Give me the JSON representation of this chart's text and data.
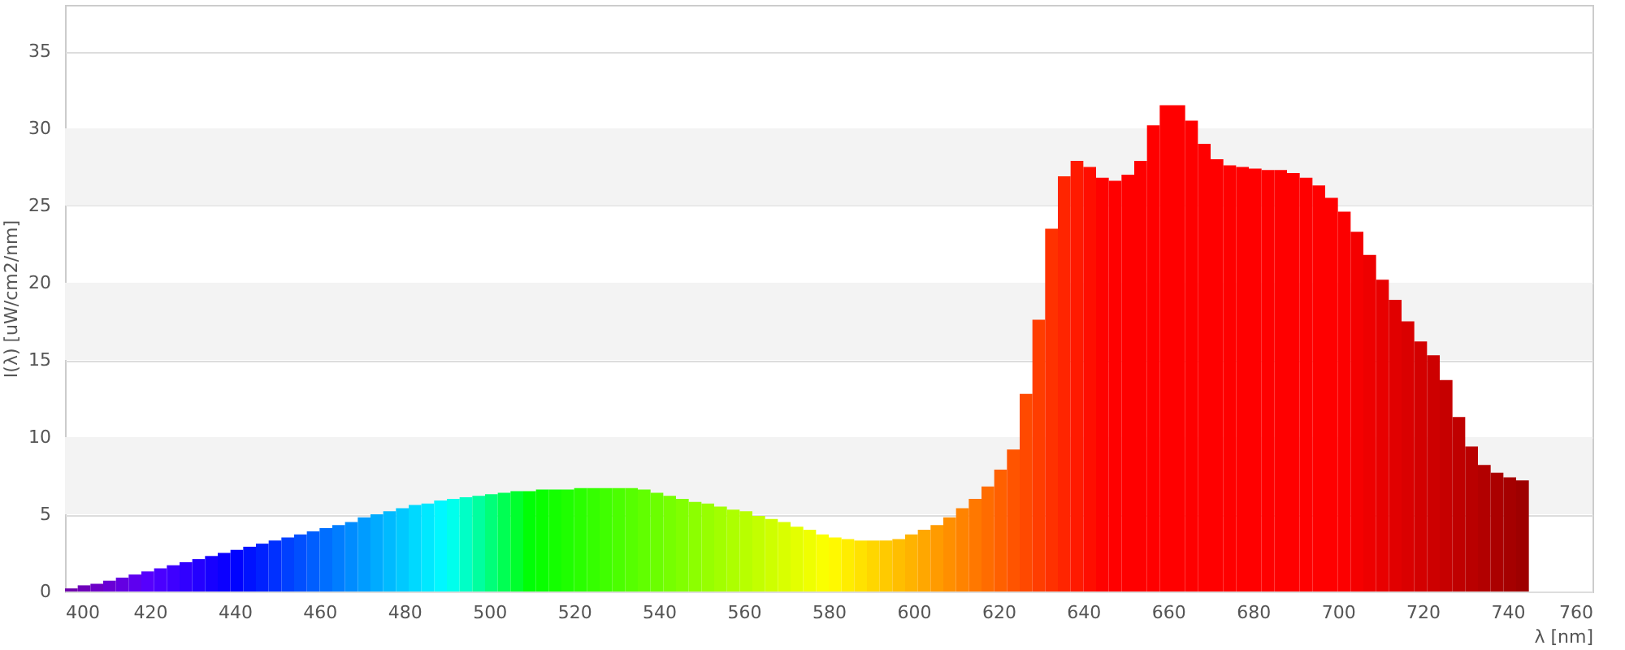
{
  "chart_data": {
    "type": "histogram",
    "xlabel": "λ [nm]",
    "ylabel": "I(λ) [uW/cm2/nm]",
    "bins": [
      400,
      403,
      406,
      409,
      412,
      415,
      418,
      421,
      424,
      427,
      430,
      433,
      436,
      439,
      442,
      445,
      448,
      451,
      454,
      457,
      460,
      463,
      466,
      469,
      472,
      475,
      478,
      481,
      484,
      487,
      490,
      493,
      496,
      499,
      502,
      505,
      508,
      511,
      514,
      517,
      520,
      523,
      526,
      529,
      532,
      535,
      538,
      541,
      544,
      547,
      550,
      553,
      556,
      559,
      562,
      565,
      568,
      571,
      574,
      577,
      580,
      583,
      586,
      589,
      592,
      595,
      598,
      601,
      604,
      607,
      610,
      613,
      616,
      619,
      622,
      625,
      628,
      631,
      634,
      637,
      640,
      643,
      646,
      649,
      652,
      655,
      658,
      661,
      664,
      667,
      670,
      673,
      676,
      679,
      682,
      685,
      688,
      691,
      694,
      697,
      700,
      703,
      706,
      709,
      712,
      715,
      718,
      721,
      724,
      727,
      730,
      733,
      736,
      739,
      742,
      745
    ],
    "values": [
      0.2,
      0.4,
      0.5,
      0.7,
      0.9,
      1.1,
      1.3,
      1.5,
      1.7,
      1.9,
      2.1,
      2.3,
      2.5,
      2.7,
      2.9,
      3.1,
      3.3,
      3.5,
      3.7,
      3.9,
      4.1,
      4.3,
      4.5,
      4.8,
      5.0,
      5.2,
      5.4,
      5.6,
      5.7,
      5.9,
      6.0,
      6.1,
      6.2,
      6.3,
      6.4,
      6.5,
      6.5,
      6.6,
      6.6,
      6.6,
      6.7,
      6.7,
      6.7,
      6.7,
      6.7,
      6.6,
      6.4,
      6.2,
      6.0,
      5.8,
      5.7,
      5.5,
      5.3,
      5.2,
      4.9,
      4.7,
      4.5,
      4.2,
      4.0,
      3.7,
      3.5,
      3.4,
      3.3,
      3.3,
      3.3,
      3.4,
      3.7,
      4.0,
      4.3,
      4.8,
      5.4,
      6.0,
      6.8,
      7.9,
      9.2,
      12.8,
      17.6,
      23.5,
      26.9,
      27.9,
      27.5,
      26.8,
      26.6,
      27.0,
      27.9,
      30.2,
      31.5,
      31.5,
      30.5,
      29.0,
      28.0,
      27.6,
      27.5,
      27.4,
      27.3,
      27.3,
      27.1,
      26.8,
      26.3,
      25.5,
      24.6,
      23.3,
      21.8,
      20.2,
      18.9,
      17.5,
      16.2,
      15.3,
      13.7,
      11.3,
      9.4,
      8.2,
      7.7,
      7.4,
      7.2
    ],
    "colors": [
      "#6f00ac",
      "#6e00ba",
      "#6c00c7",
      "#6900d5",
      "#6400e2",
      "#5e00ef",
      "#5600fd",
      "#4a00ff",
      "#3e00ff",
      "#3100ff",
      "#2400ff",
      "#1700ff",
      "#0b00ff",
      "#0003ff",
      "#0012ff",
      "#0021ff",
      "#0030ff",
      "#0040ff",
      "#004fff",
      "#005eff",
      "#006eff",
      "#007dff",
      "#008cff",
      "#009cff",
      "#00abff",
      "#00baff",
      "#00c9ff",
      "#00d9ff",
      "#00e8ff",
      "#00f7ff",
      "#00ffec",
      "#00ffc6",
      "#00ff9f",
      "#00ff79",
      "#00ff53",
      "#00ff2d",
      "#00ff06",
      "#09ff00",
      "#14ff00",
      "#1fff00",
      "#2aff00",
      "#35ff00",
      "#40ff00",
      "#4bff00",
      "#56ff00",
      "#61ff00",
      "#6bff00",
      "#76ff00",
      "#81ff00",
      "#8cff00",
      "#97ff00",
      "#a2ff00",
      "#adff00",
      "#b8ff00",
      "#c3ff00",
      "#ceff00",
      "#d9ff00",
      "#e4ff00",
      "#efff00",
      "#faff00",
      "#fff900",
      "#ffed00",
      "#ffe200",
      "#ffd600",
      "#ffca00",
      "#ffbe00",
      "#ffb300",
      "#ffa700",
      "#ff9b00",
      "#ff8f00",
      "#ff8300",
      "#ff7800",
      "#ff6c00",
      "#ff6000",
      "#ff5400",
      "#ff4900",
      "#ff3d00",
      "#ff3100",
      "#ff2500",
      "#ff1a00",
      "#ff0e00",
      "#ff0200",
      "#ff0000",
      "#ff0000",
      "#ff0000",
      "#ff0000",
      "#ff0000",
      "#ff0000",
      "#ff0000",
      "#ff0000",
      "#ff0000",
      "#ff0000",
      "#ff0000",
      "#ff0000",
      "#ff0000",
      "#ff0000",
      "#ff0000",
      "#ff0000",
      "#ff0000",
      "#ff0000",
      "#fc0000",
      "#f50000",
      "#ee0000",
      "#e80000",
      "#e10000",
      "#da0000",
      "#d30000",
      "#cd0000",
      "#c60000",
      "#bf0000",
      "#b90000",
      "#b20000",
      "#ab0000",
      "#a50000",
      "#9e0000"
    ],
    "xlim": [
      400,
      760
    ],
    "xticks": [
      400,
      420,
      440,
      460,
      480,
      500,
      520,
      540,
      560,
      580,
      600,
      620,
      640,
      660,
      680,
      700,
      720,
      740,
      760
    ],
    "ylim": [
      0,
      38
    ],
    "yticks": [
      0,
      5,
      10,
      15,
      20,
      25,
      30,
      35
    ],
    "grid": "y",
    "bands": [
      {
        "axis": "y",
        "from": 5,
        "to": 10,
        "color": "#f3f3f3"
      },
      {
        "axis": "y",
        "from": 15,
        "to": 20,
        "color": "#f3f3f3"
      },
      {
        "axis": "y",
        "from": 25,
        "to": 30,
        "color": "#f3f3f3"
      }
    ]
  }
}
